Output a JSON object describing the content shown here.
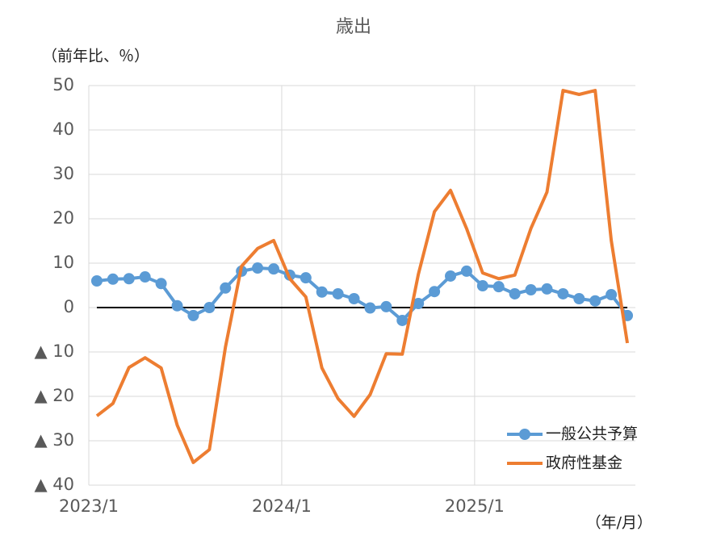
{
  "chart_data": {
    "type": "line",
    "title": "歳出",
    "y_label": "（前年比、％）",
    "x_label": "（年/月）",
    "categories": [
      "2023/1",
      null,
      null,
      null,
      null,
      null,
      null,
      null,
      null,
      null,
      null,
      null,
      "2024/1",
      null,
      null,
      null,
      null,
      null,
      null,
      null,
      null,
      null,
      null,
      null,
      "2025/1",
      null,
      null,
      null,
      null,
      null,
      null,
      null,
      null,
      null
    ],
    "series": [
      {
        "name": "一般公共予算",
        "color": "#5b9bd5",
        "marker": true,
        "values": [
          6.0,
          6.4,
          6.5,
          6.9,
          5.4,
          0.4,
          -1.8,
          0,
          4.4,
          8.2,
          8.9,
          8.7,
          7.3,
          6.7,
          3.5,
          3.1,
          2.0,
          -0.1,
          0.2,
          -2.9,
          0.9,
          3.6,
          7.1,
          8.2,
          4.9,
          4.7,
          3.1,
          4.0,
          4.2,
          3.1,
          2.0,
          1.5,
          2.9,
          -1.8
        ]
      },
      {
        "name": "政府性基金",
        "color": "#ed7d31",
        "marker": false,
        "values": [
          -24.4,
          -21.6,
          -13.5,
          -11.3,
          -13.6,
          -26.5,
          -34.9,
          -32.0,
          -8.9,
          9.3,
          13.3,
          15.1,
          6.5,
          2.4,
          -13.6,
          -20.5,
          -24.5,
          -19.6,
          -10.4,
          -10.5,
          7.5,
          21.6,
          26.4,
          17.8,
          7.8,
          6.5,
          7.3,
          17.8,
          26.0,
          48.9,
          48.0,
          48.9,
          15.1,
          -8.0
        ]
      }
    ],
    "ylim": [
      -40,
      50
    ],
    "yticks": [
      {
        "value": -40,
        "label": "▲ 40"
      },
      {
        "value": -30,
        "label": "▲ 30"
      },
      {
        "value": -20,
        "label": "▲ 20"
      },
      {
        "value": -10,
        "label": "▲ 10"
      },
      0,
      10,
      20,
      30,
      40,
      50
    ],
    "grid": true,
    "legend": "lower right"
  }
}
